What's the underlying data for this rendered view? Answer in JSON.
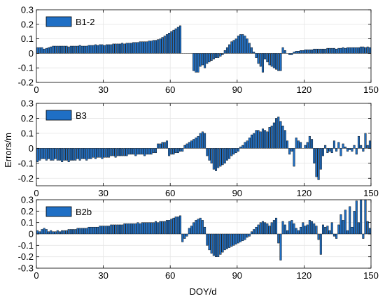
{
  "figure": {
    "ylabel": "Errors/m",
    "xlabel": "DOY/d",
    "colors": {
      "bar_fill": "#1f6fc5",
      "bar_edge": "#000000",
      "axis": "#000000",
      "grid": "#e6e6e6"
    }
  },
  "chart_data": [
    {
      "type": "bar",
      "legend": "B1-2",
      "legend_position": "top-left",
      "xlim": [
        0,
        150
      ],
      "ylim": [
        -0.2,
        0.3
      ],
      "xticks": [
        0,
        30,
        60,
        90,
        120,
        150
      ],
      "yticks": [
        -0.2,
        -0.1,
        0,
        0.1,
        0.2,
        0.3
      ],
      "ytick_labels": [
        "-0.2",
        "-0.1",
        "0",
        "0.1",
        "0.2",
        "0.3"
      ],
      "grid": true,
      "x": [
        1,
        2,
        3,
        4,
        5,
        6,
        7,
        8,
        9,
        10,
        11,
        12,
        13,
        14,
        15,
        16,
        17,
        18,
        19,
        20,
        21,
        22,
        23,
        24,
        25,
        26,
        27,
        28,
        29,
        30,
        31,
        32,
        33,
        34,
        35,
        36,
        37,
        38,
        39,
        40,
        41,
        42,
        43,
        44,
        45,
        46,
        47,
        48,
        49,
        50,
        51,
        52,
        53,
        54,
        55,
        56,
        57,
        58,
        59,
        60,
        61,
        62,
        63,
        64,
        65,
        66,
        67,
        68,
        69,
        70,
        71,
        72,
        73,
        74,
        75,
        76,
        77,
        78,
        79,
        80,
        81,
        82,
        83,
        84,
        85,
        86,
        87,
        88,
        89,
        90,
        91,
        92,
        93,
        94,
        95,
        96,
        97,
        98,
        99,
        100,
        101,
        102,
        103,
        104,
        105,
        106,
        107,
        108,
        109,
        110,
        111,
        112,
        113,
        114,
        115,
        116,
        117,
        118,
        119,
        120,
        121,
        122,
        123,
        124,
        125,
        126,
        127,
        128,
        129,
        130,
        131,
        132,
        133,
        134,
        135,
        136,
        137,
        138,
        139,
        140,
        141,
        142,
        143,
        144,
        145,
        146,
        147,
        148,
        149,
        150
      ],
      "values": [
        0.04,
        0.04,
        0.04,
        0.03,
        0.035,
        0.04,
        0.045,
        0.05,
        0.05,
        0.05,
        0.05,
        0.05,
        0.05,
        0.05,
        0.045,
        0.05,
        0.05,
        0.05,
        0.05,
        0.055,
        0.05,
        0.05,
        0.05,
        0.055,
        0.055,
        0.055,
        0.06,
        0.055,
        0.06,
        0.06,
        0.055,
        0.06,
        0.06,
        0.06,
        0.065,
        0.065,
        0.065,
        0.065,
        0.07,
        0.065,
        0.07,
        0.07,
        0.07,
        0.075,
        0.075,
        0.075,
        0.08,
        0.08,
        0.08,
        0.08,
        0.085,
        0.085,
        0.09,
        0.09,
        0.095,
        0.1,
        0.11,
        0.12,
        0.13,
        0.14,
        0.15,
        0.16,
        0.17,
        0.18,
        0.19,
        0.0,
        0.0,
        0.0,
        0.0,
        0.0,
        -0.12,
        -0.13,
        -0.13,
        -0.09,
        -0.08,
        -0.1,
        -0.07,
        -0.06,
        -0.05,
        -0.04,
        -0.03,
        -0.03,
        -0.02,
        -0.01,
        0.02,
        0.04,
        0.06,
        0.08,
        0.09,
        0.1,
        0.12,
        0.13,
        0.13,
        0.12,
        0.1,
        0.07,
        0.04,
        0.01,
        -0.03,
        -0.07,
        -0.09,
        -0.13,
        -0.04,
        -0.06,
        -0.08,
        -0.09,
        -0.1,
        -0.11,
        -0.12,
        -0.12,
        0.04,
        0.02,
        0.0,
        -0.01,
        -0.01,
        0.01,
        0.015,
        0.015,
        0.02,
        0.02,
        0.025,
        0.025,
        0.025,
        0.025,
        0.03,
        0.03,
        0.03,
        0.03,
        0.03,
        0.03,
        0.035,
        0.035,
        0.035,
        0.035,
        0.03,
        0.035,
        0.035,
        0.04,
        0.035,
        0.04,
        0.04,
        0.04,
        0.04,
        0.04,
        0.04,
        0.045,
        0.045,
        0.04,
        0.045,
        0.04
      ]
    },
    {
      "type": "bar",
      "legend": "B3",
      "legend_position": "top-left",
      "xlim": [
        0,
        150
      ],
      "ylim": [
        -0.25,
        0.3
      ],
      "xticks": [
        0,
        30,
        60,
        90,
        120,
        150
      ],
      "yticks": [
        -0.2,
        -0.1,
        0,
        0.1,
        0.2,
        0.3
      ],
      "ytick_labels": [
        "-0.2",
        "-0.1",
        "0",
        "0.1",
        "0.2",
        "0.3"
      ],
      "grid": true,
      "x": [
        1,
        2,
        3,
        4,
        5,
        6,
        7,
        8,
        9,
        10,
        11,
        12,
        13,
        14,
        15,
        16,
        17,
        18,
        19,
        20,
        21,
        22,
        23,
        24,
        25,
        26,
        27,
        28,
        29,
        30,
        31,
        32,
        33,
        34,
        35,
        36,
        37,
        38,
        39,
        40,
        41,
        42,
        43,
        44,
        45,
        46,
        47,
        48,
        49,
        50,
        51,
        52,
        53,
        54,
        55,
        56,
        57,
        58,
        59,
        60,
        61,
        62,
        63,
        64,
        65,
        66,
        67,
        68,
        69,
        70,
        71,
        72,
        73,
        74,
        75,
        76,
        77,
        78,
        79,
        80,
        81,
        82,
        83,
        84,
        85,
        86,
        87,
        88,
        89,
        90,
        91,
        92,
        93,
        94,
        95,
        96,
        97,
        98,
        99,
        100,
        101,
        102,
        103,
        104,
        105,
        106,
        107,
        108,
        109,
        110,
        111,
        112,
        113,
        114,
        115,
        116,
        117,
        118,
        119,
        120,
        121,
        122,
        123,
        124,
        125,
        126,
        127,
        128,
        129,
        130,
        131,
        132,
        133,
        134,
        135,
        136,
        137,
        138,
        139,
        140,
        141,
        142,
        143,
        144,
        145,
        146,
        147,
        148,
        149,
        150
      ],
      "values": [
        -0.09,
        -0.08,
        -0.07,
        -0.07,
        -0.08,
        -0.07,
        -0.08,
        -0.08,
        -0.07,
        -0.08,
        -0.08,
        -0.09,
        -0.08,
        -0.08,
        -0.09,
        -0.08,
        -0.08,
        -0.08,
        -0.07,
        -0.08,
        -0.07,
        -0.07,
        -0.08,
        -0.07,
        -0.07,
        -0.06,
        -0.07,
        -0.06,
        -0.06,
        -0.07,
        -0.06,
        -0.06,
        -0.06,
        -0.05,
        -0.05,
        -0.06,
        -0.05,
        -0.05,
        -0.05,
        -0.05,
        -0.05,
        -0.04,
        -0.04,
        -0.04,
        -0.05,
        -0.04,
        -0.04,
        -0.04,
        -0.05,
        -0.04,
        -0.04,
        -0.04,
        -0.03,
        -0.03,
        0.03,
        0.03,
        0.04,
        0.04,
        0.05,
        -0.05,
        -0.04,
        -0.04,
        -0.03,
        -0.03,
        -0.02,
        -0.02,
        0.02,
        0.03,
        0.04,
        0.05,
        0.06,
        0.07,
        0.08,
        0.1,
        0.11,
        0.1,
        -0.05,
        -0.08,
        -0.1,
        -0.14,
        -0.15,
        -0.13,
        -0.12,
        -0.11,
        -0.1,
        -0.08,
        -0.07,
        -0.05,
        -0.04,
        -0.03,
        -0.02,
        0.01,
        0.02,
        0.04,
        0.05,
        0.07,
        0.09,
        0.1,
        0.12,
        0.12,
        0.11,
        0.13,
        0.12,
        0.11,
        0.14,
        0.15,
        0.17,
        0.2,
        0.21,
        0.18,
        0.15,
        0.12,
        0.05,
        -0.04,
        -0.02,
        -0.12,
        0.07,
        0.05,
        0.04,
        0.0,
        0.02,
        0.04,
        0.08,
        0.06,
        -0.1,
        -0.19,
        -0.21,
        -0.14,
        -0.05,
        0.02,
        -0.03,
        -0.02,
        -0.03,
        0.05,
        -0.02,
        0.04,
        -0.05,
        0.03,
        0.01,
        -0.02,
        -0.01,
        -0.02,
        0.02,
        -0.04,
        0.08,
        0.02,
        -0.02,
        0.1,
        0.02,
        0.05
      ]
    },
    {
      "type": "bar",
      "legend": "B2b",
      "legend_position": "top-left",
      "xlim": [
        0,
        150
      ],
      "ylim": [
        -0.3,
        0.3
      ],
      "xticks": [
        0,
        30,
        60,
        90,
        120,
        150
      ],
      "yticks": [
        -0.3,
        -0.2,
        -0.1,
        0,
        0.1,
        0.2,
        0.3
      ],
      "ytick_labels": [
        "-0.3",
        "-0.2",
        "-0.1",
        "0",
        "0.1",
        "0.2",
        "0.3"
      ],
      "grid": true,
      "x": [
        1,
        2,
        3,
        4,
        5,
        6,
        7,
        8,
        9,
        10,
        11,
        12,
        13,
        14,
        15,
        16,
        17,
        18,
        19,
        20,
        21,
        22,
        23,
        24,
        25,
        26,
        27,
        28,
        29,
        30,
        31,
        32,
        33,
        34,
        35,
        36,
        37,
        38,
        39,
        40,
        41,
        42,
        43,
        44,
        45,
        46,
        47,
        48,
        49,
        50,
        51,
        52,
        53,
        54,
        55,
        56,
        57,
        58,
        59,
        60,
        61,
        62,
        63,
        64,
        65,
        66,
        67,
        68,
        69,
        70,
        71,
        72,
        73,
        74,
        75,
        76,
        77,
        78,
        79,
        80,
        81,
        82,
        83,
        84,
        85,
        86,
        87,
        88,
        89,
        90,
        91,
        92,
        93,
        94,
        95,
        96,
        97,
        98,
        99,
        100,
        101,
        102,
        103,
        104,
        105,
        106,
        107,
        108,
        109,
        110,
        111,
        112,
        113,
        114,
        115,
        116,
        117,
        118,
        119,
        120,
        121,
        122,
        123,
        124,
        125,
        126,
        127,
        128,
        129,
        130,
        131,
        132,
        133,
        134,
        135,
        136,
        137,
        138,
        139,
        140,
        141,
        142,
        143,
        144,
        145,
        146,
        147,
        148,
        149,
        150
      ],
      "values": [
        0.03,
        0.02,
        0.04,
        0.05,
        0.04,
        0.02,
        0.03,
        0.02,
        0.02,
        0.03,
        0.02,
        0.03,
        0.03,
        0.03,
        0.04,
        0.04,
        0.04,
        0.04,
        0.05,
        0.05,
        0.05,
        0.05,
        0.05,
        0.06,
        0.06,
        0.06,
        0.06,
        0.06,
        0.07,
        0.07,
        0.07,
        0.07,
        0.07,
        0.08,
        0.08,
        0.08,
        0.08,
        0.08,
        0.08,
        0.09,
        0.09,
        0.09,
        0.09,
        0.09,
        0.09,
        0.1,
        0.09,
        0.1,
        0.1,
        0.1,
        0.1,
        0.1,
        0.1,
        0.11,
        0.1,
        0.11,
        0.11,
        0.11,
        0.12,
        0.12,
        0.13,
        0.14,
        0.15,
        0.15,
        0.16,
        -0.07,
        -0.04,
        -0.02,
        0.05,
        0.07,
        0.1,
        0.12,
        0.13,
        0.14,
        0.12,
        0.06,
        -0.1,
        -0.14,
        -0.17,
        -0.19,
        -0.2,
        -0.2,
        -0.18,
        -0.16,
        -0.14,
        -0.13,
        -0.12,
        -0.11,
        -0.1,
        -0.09,
        -0.08,
        -0.07,
        -0.06,
        -0.05,
        -0.03,
        -0.02,
        0.02,
        0.04,
        0.06,
        0.08,
        0.1,
        0.11,
        0.1,
        0.09,
        0.07,
        0.1,
        0.12,
        0.14,
        -0.08,
        -0.23,
        0.11,
        0.08,
        0.03,
        0.11,
        0.12,
        0.09,
        0.05,
        0.03,
        0.06,
        0.1,
        0.07,
        0.08,
        0.12,
        0.11,
        0.09,
        0.07,
        -0.05,
        -0.18,
        0.08,
        0.06,
        0.07,
        0.03,
        0.1,
        -0.02,
        -0.04,
        0.08,
        0.17,
        0.12,
        0.21,
        0.03,
        0.24,
        0.06,
        0.2,
        0.29,
        0.1,
        0.3,
        -0.04,
        0.3,
        0.11,
        0.05
      ]
    }
  ]
}
